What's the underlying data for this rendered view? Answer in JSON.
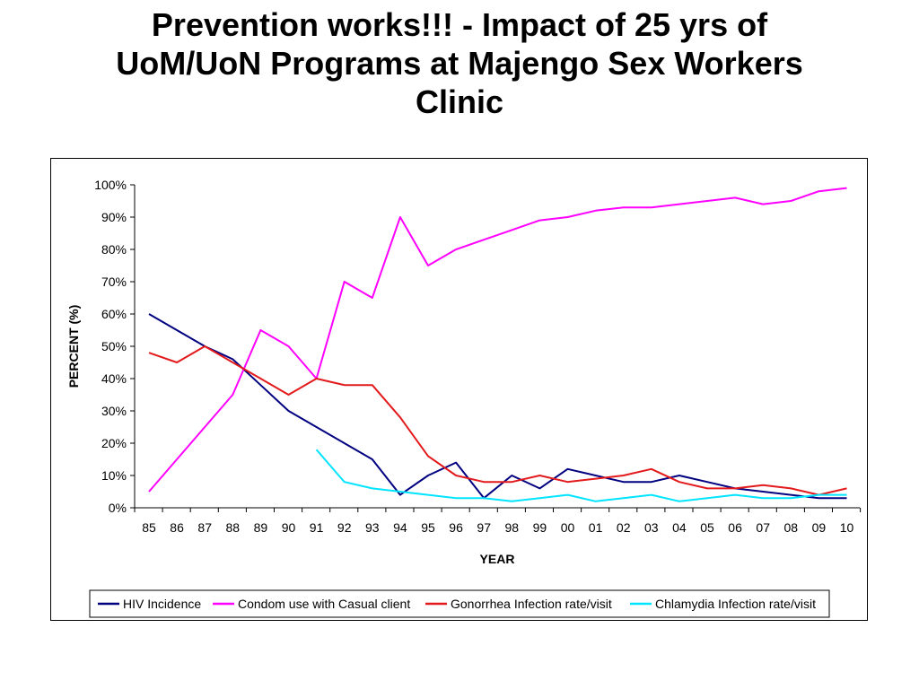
{
  "slide": {
    "title_lines": [
      "Prevention works!!! - Impact of 25 yrs of",
      "UoM/UoN Programs at Majengo Sex Workers",
      "Clinic"
    ]
  },
  "chart_data": {
    "type": "line",
    "xlabel": "YEAR",
    "ylabel": "PERCENT (%)",
    "ylim": [
      0,
      100
    ],
    "y_ticks": [
      "0%",
      "10%",
      "20%",
      "30%",
      "40%",
      "50%",
      "60%",
      "70%",
      "80%",
      "90%",
      "100%"
    ],
    "categories": [
      "85",
      "86",
      "87",
      "88",
      "89",
      "90",
      "91",
      "92",
      "93",
      "94",
      "95",
      "96",
      "97",
      "98",
      "99",
      "00",
      "01",
      "02",
      "03",
      "04",
      "05",
      "06",
      "07",
      "08",
      "09",
      "10"
    ],
    "grid": false,
    "legend_position": "bottom",
    "series": [
      {
        "name": "HIV Incidence",
        "color": "#000080",
        "values": [
          60,
          55,
          50,
          46,
          38,
          30,
          25,
          20,
          15,
          4,
          10,
          14,
          3,
          10,
          6,
          12,
          10,
          8,
          8,
          10,
          8,
          6,
          5,
          4,
          3,
          3
        ]
      },
      {
        "name": "Condom use with Casual client",
        "color": "#ff00ff",
        "values": [
          5,
          15,
          25,
          35,
          55,
          50,
          40,
          70,
          65,
          90,
          75,
          80,
          83,
          86,
          89,
          90,
          92,
          93,
          93,
          94,
          95,
          96,
          94,
          95,
          98,
          99
        ]
      },
      {
        "name": "Gonorrhea Infection rate/visit",
        "color": "#e31a1c",
        "values": [
          48,
          45,
          50,
          45,
          40,
          35,
          40,
          38,
          38,
          28,
          16,
          10,
          8,
          8,
          10,
          8,
          9,
          10,
          12,
          8,
          6,
          6,
          7,
          6,
          4,
          6
        ]
      },
      {
        "name": "Chlamydia Infection rate/visit",
        "color": "#00e5ff",
        "values": [
          null,
          null,
          null,
          null,
          null,
          null,
          18,
          8,
          6,
          5,
          4,
          3,
          3,
          2,
          3,
          4,
          2,
          3,
          4,
          2,
          3,
          4,
          3,
          3,
          4,
          4
        ]
      }
    ]
  }
}
